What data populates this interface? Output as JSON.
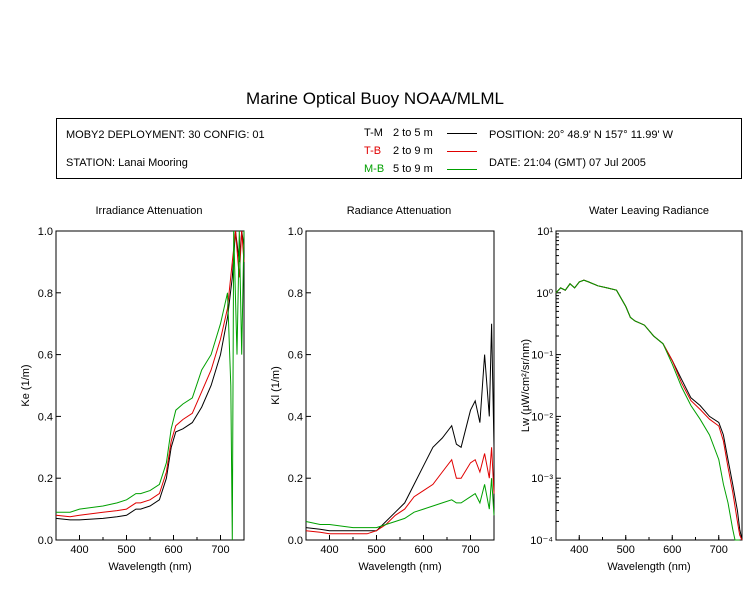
{
  "title": "Marine Optical Buoy NOAA/MLML",
  "info": {
    "deployment": "MOBY2 DEPLOYMENT: 30 CONFIG: 01",
    "station": "STATION: Lanai Mooring",
    "position": "POSITION: 20° 48.9' N   157° 11.99' W",
    "date": "DATE: 21:04 (GMT) 07 Jul 2005"
  },
  "legend": [
    {
      "key": "T-M",
      "range": "2 to 5  m",
      "color": "#000000"
    },
    {
      "key": "T-B",
      "range": "2 to 9  m",
      "color": "#e00000"
    },
    {
      "key": "M-B",
      "range": "5 to 9  m",
      "color": "#00a000"
    }
  ],
  "chart_data": [
    {
      "type": "line",
      "title": "Irradiance Attenuation",
      "xlabel": "Wavelength (nm)",
      "ylabel": "Ke  (1/m)",
      "xlim": [
        350,
        750
      ],
      "ylim": [
        0,
        1.0
      ],
      "xticks": [
        "400",
        "500",
        "600",
        "700"
      ],
      "yticks": [
        "0.0",
        "0.2",
        "0.4",
        "0.6",
        "0.8",
        "1.0"
      ],
      "series": [
        {
          "name": "T-M",
          "color": "#000000",
          "x": [
            350,
            380,
            400,
            450,
            480,
            500,
            520,
            530,
            550,
            570,
            585,
            595,
            605,
            620,
            640,
            660,
            680,
            700,
            715,
            725,
            732,
            740,
            745,
            750
          ],
          "y": [
            0.07,
            0.065,
            0.065,
            0.07,
            0.075,
            0.08,
            0.1,
            0.1,
            0.11,
            0.13,
            0.2,
            0.3,
            0.35,
            0.36,
            0.38,
            0.43,
            0.5,
            0.6,
            0.72,
            0.85,
            1.0,
            0.9,
            1.0,
            0.95
          ]
        },
        {
          "name": "T-B",
          "color": "#e00000",
          "x": [
            350,
            380,
            400,
            450,
            480,
            500,
            520,
            530,
            550,
            570,
            585,
            595,
            605,
            620,
            640,
            660,
            680,
            700,
            715,
            725,
            732,
            740,
            745,
            750
          ],
          "y": [
            0.08,
            0.075,
            0.08,
            0.09,
            0.095,
            0.1,
            0.12,
            0.12,
            0.13,
            0.15,
            0.22,
            0.32,
            0.37,
            0.39,
            0.41,
            0.48,
            0.55,
            0.65,
            0.75,
            0.9,
            1.0,
            0.85,
            1.0,
            0.9
          ]
        },
        {
          "name": "M-B",
          "color": "#00a000",
          "x": [
            350,
            380,
            400,
            450,
            480,
            500,
            520,
            530,
            550,
            570,
            585,
            595,
            605,
            620,
            640,
            660,
            680,
            700,
            715,
            722,
            725,
            728,
            735,
            740,
            745,
            750
          ],
          "y": [
            0.09,
            0.09,
            0.1,
            0.11,
            0.12,
            0.13,
            0.15,
            0.15,
            0.16,
            0.18,
            0.25,
            0.36,
            0.42,
            0.44,
            0.46,
            0.55,
            0.6,
            0.7,
            0.8,
            0.5,
            0.0,
            1.0,
            0.6,
            1.0,
            0.6,
            1.0
          ]
        }
      ]
    },
    {
      "type": "line",
      "title": "Radiance Attenuation",
      "xlabel": "Wavelength (nm)",
      "ylabel": "Kl  (1/m)",
      "xlim": [
        350,
        750
      ],
      "ylim": [
        0,
        1.0
      ],
      "xticks": [
        "400",
        "500",
        "600",
        "700"
      ],
      "yticks": [
        "0.0",
        "0.2",
        "0.4",
        "0.6",
        "0.8",
        "1.0"
      ],
      "series": [
        {
          "name": "T-M",
          "color": "#000000",
          "x": [
            350,
            380,
            400,
            450,
            480,
            500,
            520,
            540,
            560,
            580,
            600,
            620,
            640,
            660,
            670,
            680,
            700,
            710,
            720,
            730,
            740,
            745,
            750
          ],
          "y": [
            0.04,
            0.035,
            0.03,
            0.03,
            0.03,
            0.03,
            0.06,
            0.09,
            0.12,
            0.18,
            0.24,
            0.3,
            0.33,
            0.37,
            0.31,
            0.3,
            0.42,
            0.45,
            0.38,
            0.6,
            0.4,
            0.7,
            0.3
          ]
        },
        {
          "name": "T-B",
          "color": "#e00000",
          "x": [
            350,
            380,
            400,
            450,
            480,
            500,
            520,
            540,
            560,
            580,
            600,
            620,
            640,
            660,
            670,
            680,
            700,
            710,
            720,
            730,
            740,
            745,
            750
          ],
          "y": [
            0.03,
            0.025,
            0.02,
            0.02,
            0.02,
            0.03,
            0.05,
            0.08,
            0.1,
            0.14,
            0.16,
            0.18,
            0.22,
            0.26,
            0.2,
            0.2,
            0.25,
            0.26,
            0.22,
            0.28,
            0.2,
            0.3,
            0.15
          ]
        },
        {
          "name": "M-B",
          "color": "#00a000",
          "x": [
            350,
            380,
            400,
            450,
            480,
            500,
            520,
            540,
            560,
            580,
            600,
            620,
            640,
            660,
            670,
            680,
            700,
            710,
            720,
            730,
            740,
            745,
            750
          ],
          "y": [
            0.06,
            0.05,
            0.05,
            0.04,
            0.04,
            0.04,
            0.05,
            0.06,
            0.07,
            0.09,
            0.1,
            0.11,
            0.12,
            0.13,
            0.12,
            0.12,
            0.14,
            0.15,
            0.12,
            0.18,
            0.1,
            0.2,
            0.08
          ]
        }
      ]
    },
    {
      "type": "line",
      "title": "Water Leaving Radiance",
      "xlabel": "Wavelength (nm)",
      "ylabel": "Lw  (µW/cm²/sr/nm)",
      "scale": "log",
      "xlim": [
        350,
        750
      ],
      "ylim": [
        0.0001,
        10
      ],
      "xticks": [
        "400",
        "500",
        "600",
        "700"
      ],
      "yticks": [
        "10¹",
        "10⁰",
        "10⁻¹",
        "10⁻²",
        "10⁻³",
        "10⁻⁴"
      ],
      "series": [
        {
          "name": "T-M",
          "color": "#000000",
          "x": [
            350,
            360,
            370,
            380,
            390,
            400,
            410,
            420,
            440,
            460,
            480,
            500,
            510,
            520,
            540,
            560,
            580,
            600,
            620,
            640,
            660,
            680,
            700,
            710,
            720,
            730,
            740,
            745,
            750
          ],
          "y": [
            1.0,
            1.2,
            1.1,
            1.4,
            1.2,
            1.5,
            1.6,
            1.5,
            1.3,
            1.2,
            1.1,
            0.6,
            0.4,
            0.35,
            0.3,
            0.2,
            0.15,
            0.08,
            0.04,
            0.02,
            0.015,
            0.01,
            0.008,
            0.005,
            0.002,
            0.0008,
            0.0003,
            0.00015,
            0.0001
          ]
        },
        {
          "name": "T-B",
          "color": "#e00000",
          "x": [
            350,
            360,
            370,
            380,
            390,
            400,
            410,
            420,
            440,
            460,
            480,
            500,
            510,
            520,
            540,
            560,
            580,
            600,
            620,
            640,
            660,
            680,
            700,
            710,
            720,
            730,
            740,
            745,
            750
          ],
          "y": [
            1.0,
            1.2,
            1.1,
            1.4,
            1.2,
            1.5,
            1.6,
            1.5,
            1.3,
            1.2,
            1.1,
            0.6,
            0.4,
            0.35,
            0.3,
            0.2,
            0.15,
            0.08,
            0.035,
            0.018,
            0.013,
            0.009,
            0.007,
            0.004,
            0.0015,
            0.0006,
            0.0002,
            0.00012,
            0.0001
          ]
        },
        {
          "name": "M-B",
          "color": "#00a000",
          "x": [
            350,
            360,
            370,
            380,
            390,
            400,
            410,
            420,
            440,
            460,
            480,
            500,
            510,
            520,
            540,
            560,
            580,
            600,
            620,
            640,
            660,
            680,
            700,
            710,
            720,
            730,
            735,
            740,
            745
          ],
          "y": [
            1.0,
            1.2,
            1.1,
            1.4,
            1.2,
            1.5,
            1.6,
            1.5,
            1.3,
            1.2,
            1.1,
            0.6,
            0.4,
            0.35,
            0.3,
            0.2,
            0.15,
            0.07,
            0.03,
            0.015,
            0.009,
            0.005,
            0.002,
            0.0008,
            0.0004,
            0.00015,
            0.0001,
            0.0001,
            0.0001
          ]
        }
      ]
    }
  ]
}
